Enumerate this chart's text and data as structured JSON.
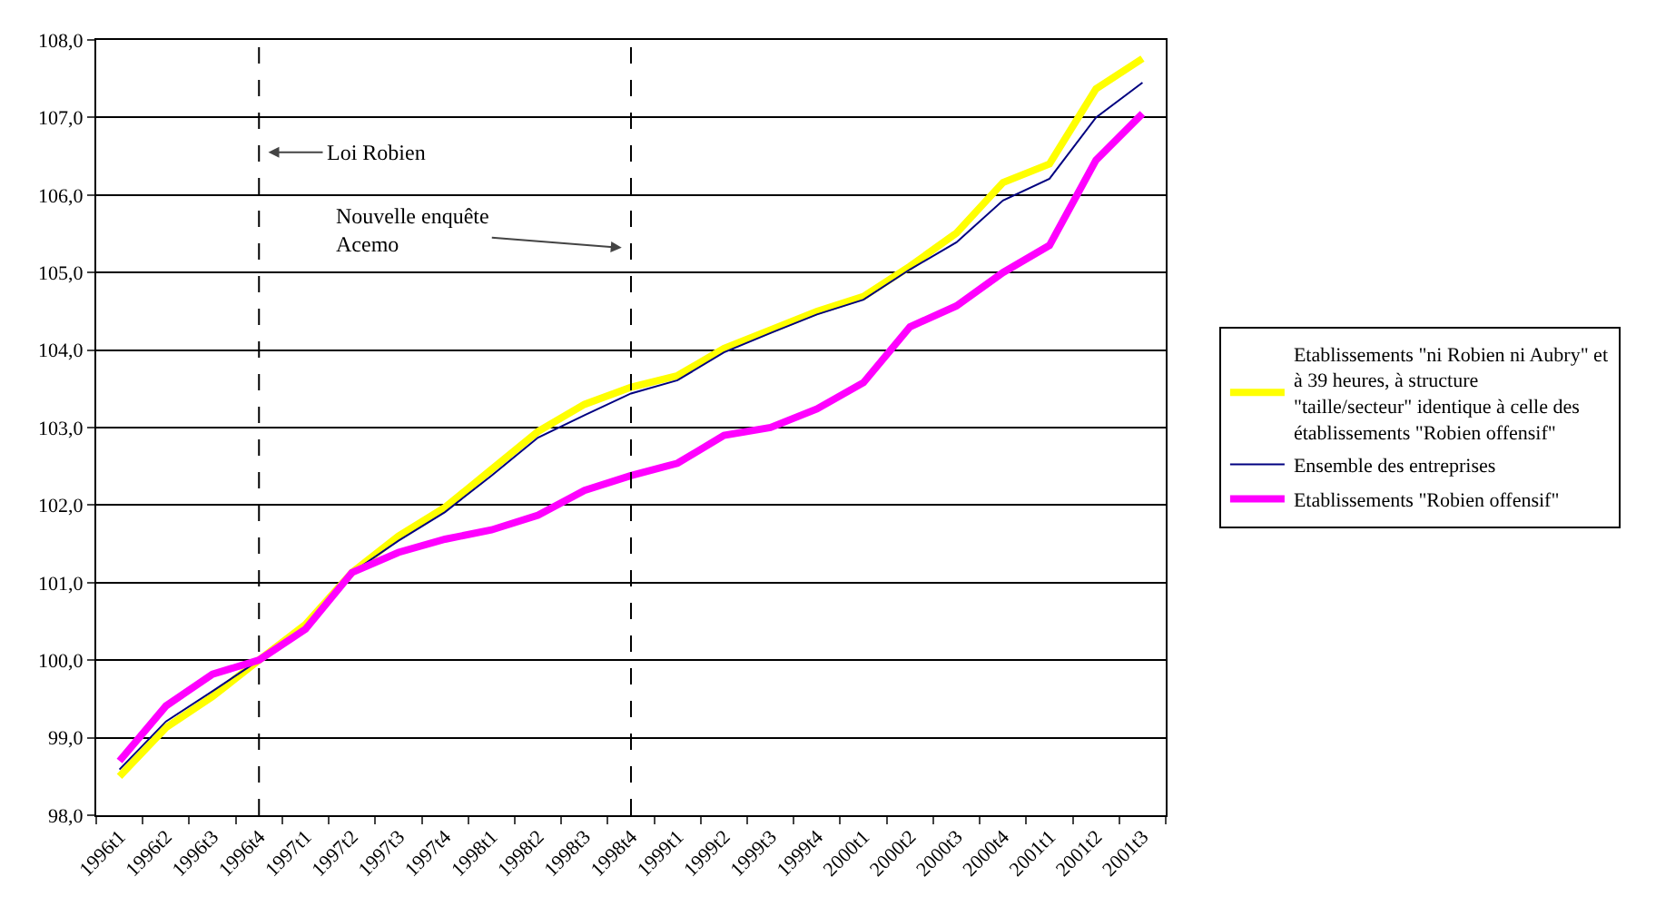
{
  "chart_data": {
    "type": "line",
    "categories": [
      "1996t1",
      "1996t2",
      "1996t3",
      "1996t4",
      "1997t1",
      "1997t2",
      "1997t3",
      "1997t4",
      "1998t1",
      "1998t2",
      "1998t3",
      "1998t4",
      "1999t1",
      "1999t2",
      "1999t3",
      "1999t4",
      "2000t1",
      "2000t2",
      "2000t3",
      "2000t4",
      "2001t1",
      "2001t2",
      "2001t3"
    ],
    "series": [
      {
        "name": "Etablissements \"ni Robien ni Aubry\" et à 39 heures, à structure \"taille/secteur\" identique à celle des établissements \"Robien offensif\"",
        "color": "#ffff00",
        "values": [
          98.5,
          99.13,
          99.53,
          100.0,
          100.46,
          101.13,
          101.6,
          101.97,
          102.46,
          102.95,
          103.3,
          103.52,
          103.67,
          104.02,
          104.26,
          104.5,
          104.69,
          105.08,
          105.51,
          106.16,
          106.4,
          107.37,
          107.76
        ]
      },
      {
        "name": "Ensemble des entreprises",
        "color": "#000080",
        "values": [
          98.59,
          99.21,
          99.6,
          100.0,
          100.43,
          101.13,
          101.54,
          101.91,
          102.38,
          102.87,
          103.16,
          103.44,
          103.61,
          103.97,
          104.22,
          104.46,
          104.65,
          105.04,
          105.39,
          105.93,
          106.21,
          107.0,
          107.45
        ]
      },
      {
        "name": "Etablissements \"Robien offensif\"",
        "color": "#ff00ff",
        "values": [
          98.7,
          99.41,
          99.82,
          100.0,
          100.4,
          101.13,
          101.39,
          101.56,
          101.68,
          101.87,
          102.19,
          102.38,
          102.54,
          102.9,
          103.0,
          103.24,
          103.58,
          104.3,
          104.57,
          105.0,
          105.35,
          106.45,
          107.05
        ]
      }
    ],
    "ylim": [
      98,
      108
    ],
    "yticks": [
      {
        "value": 98,
        "label": "98,0"
      },
      {
        "value": 99,
        "label": "99,0"
      },
      {
        "value": 100,
        "label": "100,0"
      },
      {
        "value": 101,
        "label": "101,0"
      },
      {
        "value": 102,
        "label": "102,0"
      },
      {
        "value": 103,
        "label": "103,0"
      },
      {
        "value": 104,
        "label": "104,0"
      },
      {
        "value": 105,
        "label": "105,0"
      },
      {
        "value": 106,
        "label": "106,0"
      },
      {
        "value": 107,
        "label": "107,0"
      },
      {
        "value": 108,
        "label": "108,0"
      }
    ],
    "grid": "y",
    "legend": "right",
    "ref_lines": [
      {
        "axis": "x",
        "value": "1996t4",
        "label": "Loi Robien",
        "color": "#000000",
        "line_style": "dashed"
      },
      {
        "axis": "x",
        "value": "1998t4",
        "label": "Nouvelle enquête Acemo",
        "color": "#000000",
        "line_style": "dashed"
      }
    ]
  }
}
